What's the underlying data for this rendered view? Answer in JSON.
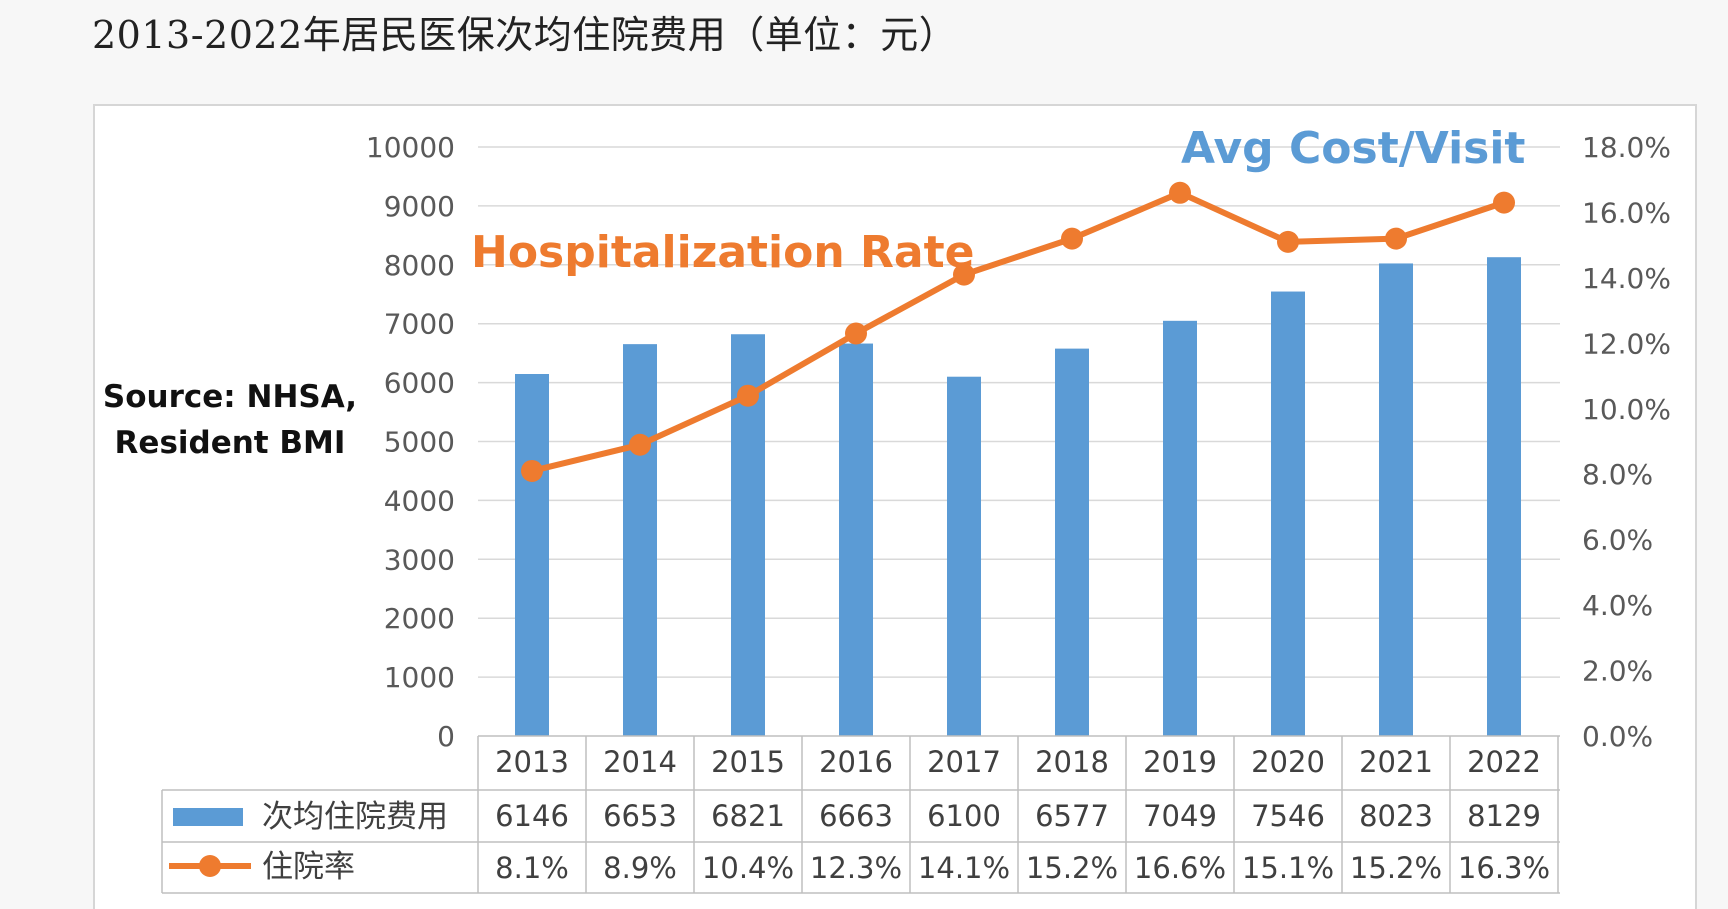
{
  "chart_data": {
    "type": "bar",
    "title": "2013-2022年居民医保次均住院费用（单位：元）",
    "categories": [
      "2013",
      "2014",
      "2015",
      "2016",
      "2017",
      "2018",
      "2019",
      "2020",
      "2021",
      "2022"
    ],
    "series": [
      {
        "name": "次均住院费用",
        "type": "bar",
        "axis": "left",
        "color": "#5b9bd5",
        "values": [
          6146,
          6653,
          6821,
          6663,
          6100,
          6577,
          7049,
          7546,
          8023,
          8129
        ],
        "labels": [
          "6146",
          "6653",
          "6821",
          "6663",
          "6100",
          "6577",
          "7049",
          "7546",
          "8023",
          "8129"
        ]
      },
      {
        "name": "住院率",
        "type": "line",
        "axis": "right",
        "color": "#ee7b2f",
        "values": [
          8.1,
          8.9,
          10.4,
          12.3,
          14.1,
          15.2,
          16.6,
          15.1,
          15.2,
          16.3
        ],
        "labels": [
          "8.1%",
          "8.9%",
          "10.4%",
          "12.3%",
          "14.1%",
          "15.2%",
          "16.6%",
          "15.1%",
          "15.2%",
          "16.3%"
        ]
      }
    ],
    "y_left": {
      "min": 0,
      "max": 10000,
      "ticks": [
        0,
        1000,
        2000,
        3000,
        4000,
        5000,
        6000,
        7000,
        8000,
        9000,
        10000
      ],
      "tick_labels": [
        "0",
        "1000",
        "2000",
        "3000",
        "4000",
        "5000",
        "6000",
        "7000",
        "8000",
        "9000",
        "10000"
      ]
    },
    "y_right": {
      "min": 0,
      "max": 18,
      "ticks": [
        0,
        2,
        4,
        6,
        8,
        10,
        12,
        14,
        16,
        18
      ],
      "tick_labels": [
        "0.0%",
        "2.0%",
        "4.0%",
        "6.0%",
        "8.0%",
        "10.0%",
        "12.0%",
        "14.0%",
        "16.0%",
        "18.0%"
      ]
    },
    "grid": true,
    "legend": "data-table",
    "annotations": {
      "rate_label": "Hospitalization Rate",
      "cost_label": "Avg Cost/Visit",
      "source_line1": "Source: NHSA,",
      "source_line2": "Resident BMI"
    }
  }
}
